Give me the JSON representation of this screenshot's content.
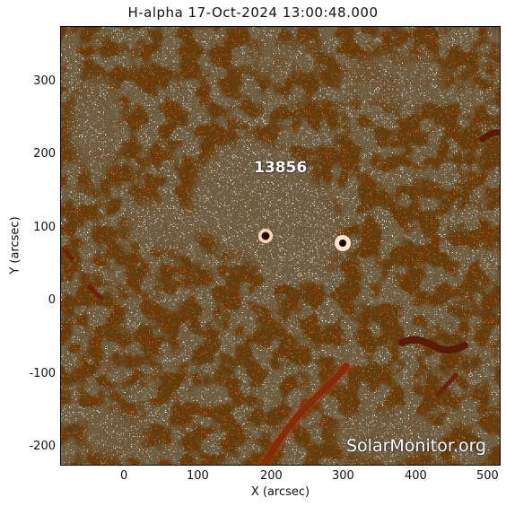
{
  "title": "H-alpha 17-Oct-2024 13:00:48.000",
  "axes": {
    "xlabel": "X (arcsec)",
    "ylabel": "Y (arcsec)",
    "xticks": [
      "0",
      "100",
      "200",
      "300",
      "400",
      "500"
    ],
    "yticks": [
      "300",
      "200",
      "100",
      "0",
      "-100",
      "-200"
    ]
  },
  "active_region": "13856",
  "watermark": "SolarMonitor.org",
  "colors": {
    "chromosphere": "#e8712a",
    "plage": "#ffffff",
    "filament": "#5a1a08",
    "bright_ring": "#ffd7b0"
  }
}
